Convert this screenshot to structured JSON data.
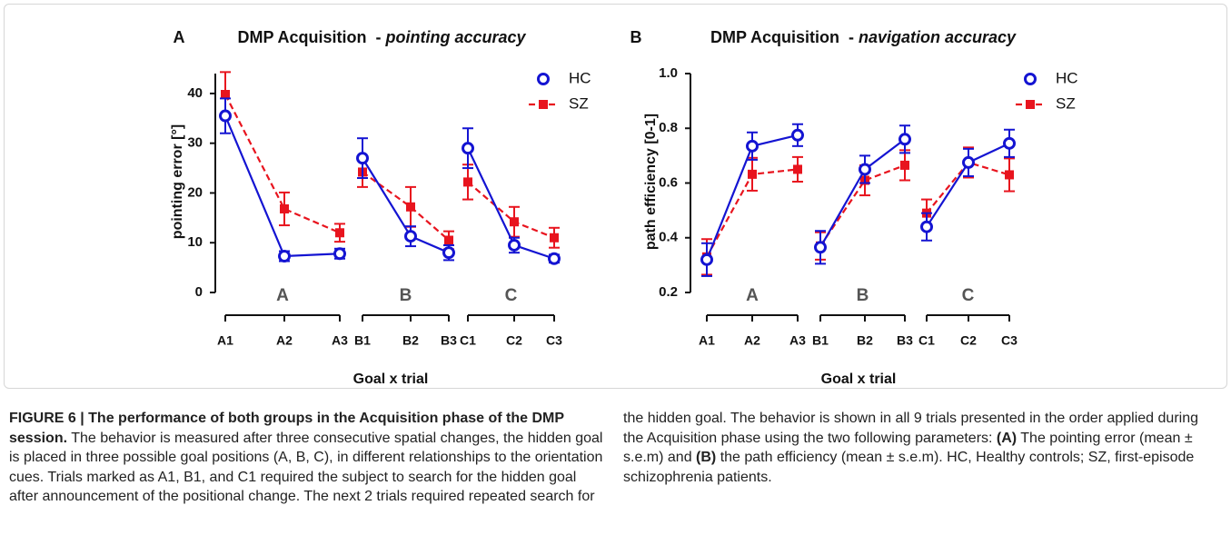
{
  "chart_data": [
    {
      "type": "line",
      "panel": "A",
      "title": "DMP Acquisition  - ",
      "title_italic": "pointing accuracy",
      "ylabel": "pointing error [°]",
      "xlabel": "Goal x trial",
      "groups": [
        "A",
        "B",
        "C"
      ],
      "categories": [
        "A1",
        "A2",
        "A3",
        "B1",
        "B2",
        "B3",
        "C1",
        "C2",
        "C3"
      ],
      "ylim": [
        0,
        44
      ],
      "yticks": [
        0,
        10,
        20,
        30,
        40
      ],
      "legend": "upper right",
      "series": [
        {
          "name": "HC",
          "color": "#1414d2",
          "values": [
            35.5,
            7.3,
            7.8,
            27,
            11.3,
            8,
            29,
            9.5,
            6.8
          ],
          "errors": [
            3.5,
            1,
            1,
            4,
            2,
            1.5,
            4,
            1.5,
            0.8
          ]
        },
        {
          "name": "SZ",
          "color": "#e8141e",
          "values": [
            39.8,
            16.8,
            12,
            24.2,
            17.2,
            10.5,
            22.2,
            14.2,
            11
          ],
          "errors": [
            4.5,
            3.3,
            1.8,
            3,
            4,
            1.8,
            3.5,
            3,
            2
          ]
        }
      ]
    },
    {
      "type": "line",
      "panel": "B",
      "title": "DMP Acquisition  - ",
      "title_italic": "navigation accuracy",
      "ylabel": "path efficiency [0-1]",
      "xlabel": "Goal x trial",
      "groups": [
        "A",
        "B",
        "C"
      ],
      "categories": [
        "A1",
        "A2",
        "A3",
        "B1",
        "B2",
        "B3",
        "C1",
        "C2",
        "C3"
      ],
      "ylim": [
        0.2,
        1.0
      ],
      "yticks": [
        0.2,
        0.4,
        0.6,
        0.8,
        {
          "value": 1,
          "label": "1.0"
        }
      ],
      "legend": "upper right",
      "series": [
        {
          "name": "HC",
          "color": "#1414d2",
          "values": [
            0.32,
            0.735,
            0.775,
            0.365,
            0.65,
            0.76,
            0.44,
            0.675,
            0.745
          ],
          "errors": [
            0.06,
            0.05,
            0.04,
            0.06,
            0.05,
            0.05,
            0.05,
            0.05,
            0.05
          ]
        },
        {
          "name": "SZ",
          "color": "#e8141e",
          "values": [
            0.33,
            0.632,
            0.65,
            0.37,
            0.61,
            0.665,
            0.49,
            0.675,
            0.63
          ],
          "errors": [
            0.065,
            0.06,
            0.045,
            0.05,
            0.055,
            0.055,
            0.05,
            0.055,
            0.06
          ]
        }
      ]
    }
  ],
  "caption": {
    "label": "FIGURE 6 | The performance of both groups in the Acquisition phase of the DMP session.",
    "segments": [
      " The behavior is measured after three consecutive spatial changes, the hidden goal is placed in three possible goal positions (A, B, C), in different relationships to the orientation cues. Trials marked as A1, B1, and C1 required the subject to search for the hidden goal after announcement of the positional change. The next 2 trials required repeated search for the hidden goal. The behavior is shown in all 9 trials presented in the order applied during the Acquisition phase using the two following parameters: ",
      "(A)",
      " The pointing error (mean ± s.e.m) and ",
      "(B)",
      " the path efficiency (mean ± s.e.m). HC, Healthy controls; SZ, first-episode schizophrenia patients."
    ]
  }
}
